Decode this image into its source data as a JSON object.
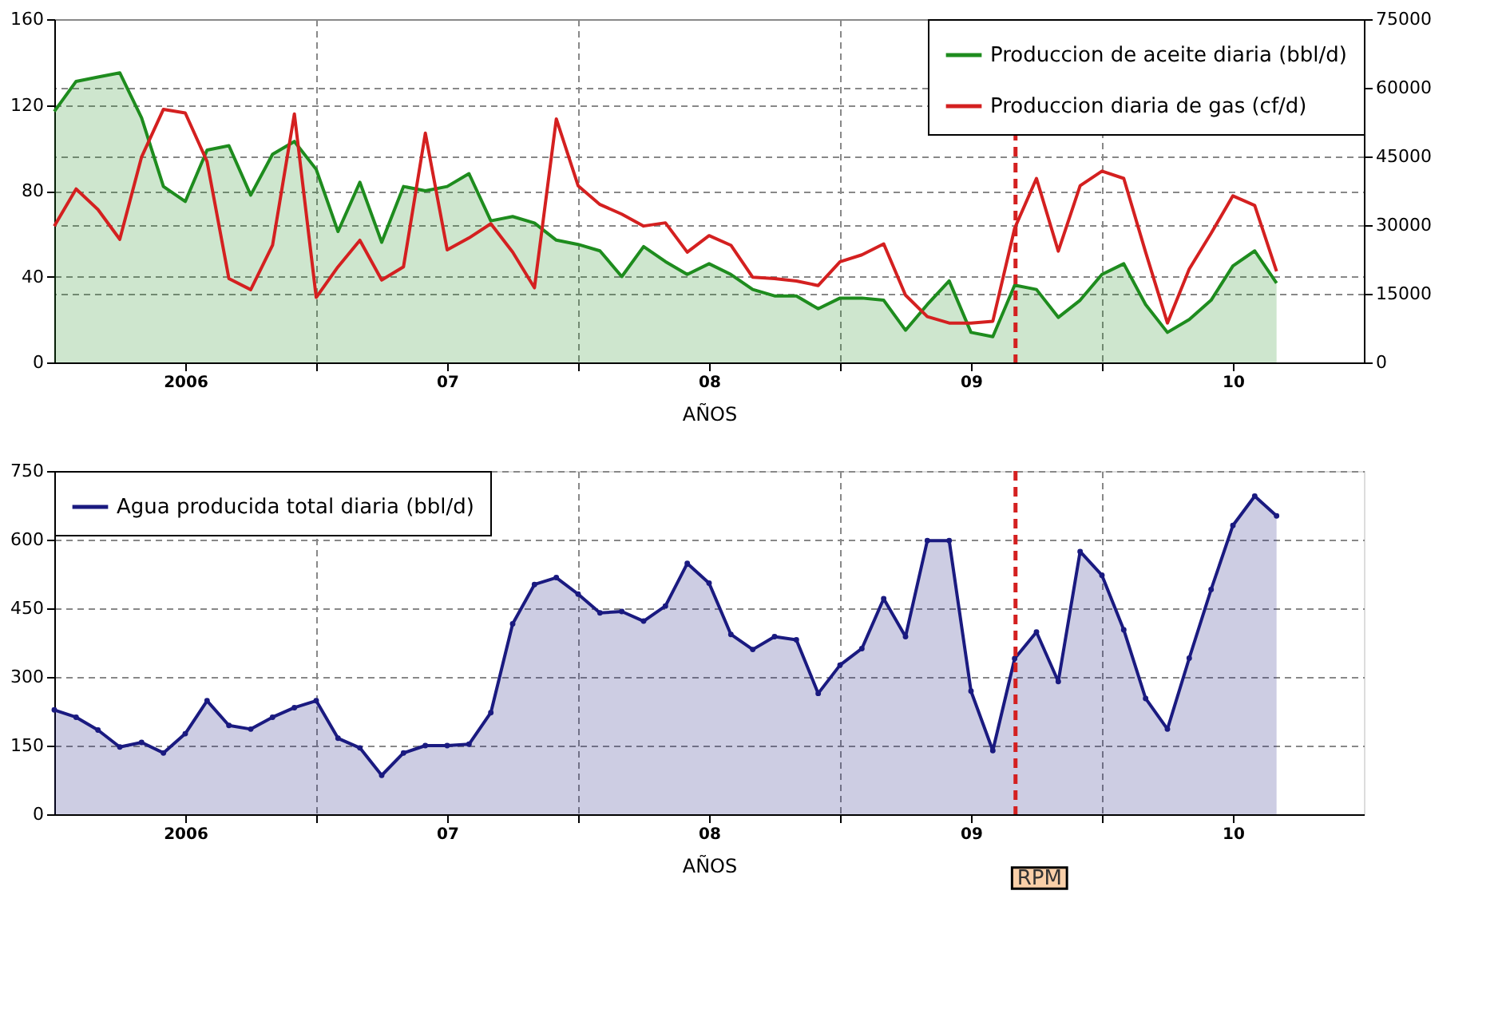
{
  "chart_data": [
    {
      "type": "area",
      "xlabel": "AÑOS",
      "xlim": [
        2005.5,
        2010.5
      ],
      "xticks": [
        2006,
        {
          "value": 2006.5,
          "label": null
        },
        {
          "value": 2007,
          "label": "07"
        },
        {
          "value": 2007.5,
          "label": null
        },
        {
          "value": 2008,
          "label": "08"
        },
        {
          "value": 2008.5,
          "label": null
        },
        {
          "value": 2009,
          "label": "09"
        },
        {
          "value": 2009.5,
          "label": null
        },
        {
          "value": 2010,
          "label": "10"
        }
      ],
      "ylim": [
        0,
        160
      ],
      "yticks": [
        0,
        40,
        80,
        120,
        160
      ],
      "y2lim": [
        0,
        75000
      ],
      "y2ticks": [
        0,
        15000,
        30000,
        45000,
        60000,
        75000
      ],
      "grid": true,
      "legend": "top right",
      "x": [
        2005.5,
        2005.5833,
        2005.6667,
        2005.75,
        2005.8333,
        2005.9167,
        2006.0,
        2006.0833,
        2006.1667,
        2006.25,
        2006.3333,
        2006.4167,
        2006.5,
        2006.5833,
        2006.6667,
        2006.75,
        2006.8333,
        2006.9167,
        2007.0,
        2007.0833,
        2007.1667,
        2007.25,
        2007.3333,
        2007.4167,
        2007.5,
        2007.5833,
        2007.6667,
        2007.75,
        2007.8333,
        2007.9167,
        2008.0,
        2008.0833,
        2008.1667,
        2008.25,
        2008.3333,
        2008.4167,
        2008.5,
        2008.5833,
        2008.6667,
        2008.75,
        2008.8333,
        2008.9167,
        2009.0,
        2009.0833,
        2009.1667,
        2009.25,
        2009.3333,
        2009.4167,
        2009.5,
        2009.5833,
        2009.6667,
        2009.75,
        2009.8333,
        2009.9167,
        2010.0,
        2010.0833,
        2010.1667
      ],
      "series": [
        {
          "name": "Produccion de aceite diaria (bbl/d)",
          "color": "#1e8c1e",
          "values": [
            117,
            131,
            133,
            135,
            114,
            82,
            75,
            99,
            101,
            78,
            97,
            103,
            90,
            61,
            84,
            56,
            82,
            80,
            82,
            88,
            66,
            68,
            65,
            57,
            55,
            52,
            40,
            54,
            47,
            41,
            46,
            41,
            34,
            31,
            31,
            25,
            30,
            30,
            29,
            15,
            27,
            38,
            14,
            12,
            36,
            34,
            21,
            29,
            41,
            46,
            27,
            14,
            20,
            29,
            45,
            52,
            37
          ]
        },
        {
          "name": "Produccion diaria de gas (cf/d)",
          "type": "line",
          "axis": "y2",
          "color": "#d42020",
          "values": [
            29800,
            37900,
            33400,
            26900,
            44900,
            55300,
            54500,
            43900,
            18300,
            15900,
            25600,
            54300,
            14200,
            20900,
            26700,
            18000,
            20900,
            50100,
            24600,
            27200,
            30300,
            24100,
            16300,
            53200,
            38600,
            34500,
            32400,
            29800,
            30500,
            24100,
            27700,
            25600,
            18600,
            18300,
            17800,
            16800,
            22000,
            23500,
            25900,
            14700,
            10000,
            8600,
            8600,
            9000,
            29300,
            40200,
            24300,
            38600,
            41800,
            40200,
            24100,
            8600,
            20400,
            28200,
            36400,
            34300,
            19900
          ]
        }
      ],
      "ref_lines": [
        {
          "axis": "x",
          "value": 2009.17,
          "color": "#d42020",
          "line_style": "dashed"
        }
      ]
    },
    {
      "type": "area",
      "xlabel": "AÑOS",
      "xlim": [
        2005.5,
        2010.5
      ],
      "xticks": [
        2006,
        {
          "value": 2006.5,
          "label": null
        },
        {
          "value": 2007,
          "label": "07"
        },
        {
          "value": 2007.5,
          "label": null
        },
        {
          "value": 2008,
          "label": "08"
        },
        {
          "value": 2008.5,
          "label": null
        },
        {
          "value": 2009,
          "label": "09"
        },
        {
          "value": 2009.5,
          "label": null
        },
        {
          "value": 2010,
          "label": "10"
        }
      ],
      "ylim": [
        0,
        750
      ],
      "yticks": [
        0,
        150,
        300,
        450,
        600,
        750
      ],
      "grid": true,
      "legend": "top left",
      "marker": "circle",
      "x": [
        2005.5,
        2005.5833,
        2005.6667,
        2005.75,
        2005.8333,
        2005.9167,
        2006.0,
        2006.0833,
        2006.1667,
        2006.25,
        2006.3333,
        2006.4167,
        2006.5,
        2006.5833,
        2006.6667,
        2006.75,
        2006.8333,
        2006.9167,
        2007.0,
        2007.0833,
        2007.1667,
        2007.25,
        2007.3333,
        2007.4167,
        2007.5,
        2007.5833,
        2007.6667,
        2007.75,
        2007.8333,
        2007.9167,
        2008.0,
        2008.0833,
        2008.1667,
        2008.25,
        2008.3333,
        2008.4167,
        2008.5,
        2008.5833,
        2008.6667,
        2008.75,
        2008.8333,
        2008.9167,
        2009.0,
        2009.0833,
        2009.1667,
        2009.25,
        2009.3333,
        2009.4167,
        2009.5,
        2009.5833,
        2009.6667,
        2009.75,
        2009.8333,
        2009.9167,
        2010.0,
        2010.0833,
        2010.1667
      ],
      "series": [
        {
          "name": "Agua producida total diaria (bbl/d)",
          "color": "#1a1a80",
          "values": [
            228,
            212,
            184,
            147,
            157,
            134,
            176,
            248,
            194,
            186,
            212,
            233,
            248,
            166,
            145,
            85,
            134,
            150,
            150,
            153,
            222,
            416,
            502,
            517,
            481,
            440,
            443,
            422,
            455,
            548,
            505,
            393,
            360,
            388,
            381,
            264,
            326,
            362,
            471,
            388,
            598,
            598,
            269,
            139,
            340,
            398,
            290,
            574,
            522,
            403,
            253,
            186,
            341,
            491,
            631,
            695,
            652
          ]
        }
      ],
      "ref_lines": [
        {
          "axis": "x",
          "value": 2009.17,
          "label": "RPM",
          "color": "#d42020",
          "line_style": "dashed"
        }
      ]
    }
  ]
}
